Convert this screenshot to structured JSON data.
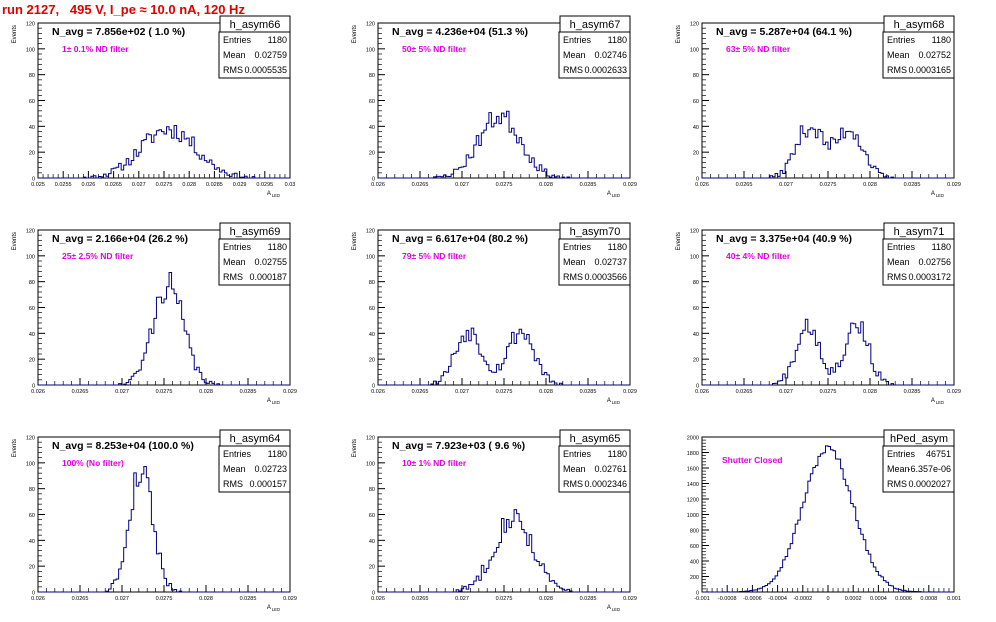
{
  "title": "run 2127,   495 V, I_pe ≈ 10.0 nA, 120 Hz",
  "colors": {
    "title": "#e00000",
    "histogram": "#000080",
    "annotation": "#e000e0",
    "axis": "#000000"
  },
  "chart_data": [
    {
      "type": "histogram",
      "name": "h_asym66",
      "nlabel": "N_avg = 7.856e+02 ( 1.0 %)",
      "annotation": "1± 0.1% ND filter",
      "entries": "1180",
      "mean": "0.02759",
      "rms": "0.0005535",
      "ylabel": "Events",
      "xlabel": "A_LED",
      "xlim": [
        0.025,
        0.03
      ],
      "ylim": [
        0,
        120
      ],
      "xticks": [
        0.025,
        0.0255,
        0.026,
        0.0265,
        0.027,
        0.0275,
        0.028,
        0.0285,
        0.029,
        0.0295,
        0.03
      ],
      "xticklabels": [
        "0.025",
        "0.0255",
        "0.026",
        "0.0265",
        "0.027",
        "0.0275",
        "0.028",
        "0.0285",
        "0.029",
        "0.0295",
        "0.03"
      ],
      "yticks": [
        0,
        20,
        40,
        60,
        80,
        100,
        120
      ],
      "shape": {
        "peaks": [
          {
            "mu": 0.02759,
            "sigma": 0.00055,
            "amp": 38
          }
        ]
      },
      "noise_seed": 11
    },
    {
      "type": "histogram",
      "name": "h_asym67",
      "nlabel": "N_avg = 4.236e+04 (51.3 %)",
      "annotation": "50± 5% ND filter",
      "entries": "1180",
      "mean": "0.02746",
      "rms": "0.0002633",
      "ylabel": "Events",
      "xlabel": "A_LED",
      "xlim": [
        0.026,
        0.029
      ],
      "ylim": [
        0,
        120
      ],
      "xticks": [
        0.026,
        0.0265,
        0.027,
        0.0275,
        0.028,
        0.0285,
        0.029
      ],
      "xticklabels": [
        "0.026",
        "0.0265",
        "0.027",
        "0.0275",
        "0.028",
        "0.0285",
        "0.029"
      ],
      "yticks": [
        0,
        20,
        40,
        60,
        80,
        100,
        120
      ],
      "shape": {
        "peaks": [
          {
            "mu": 0.02745,
            "sigma": 0.00025,
            "amp": 48
          }
        ]
      },
      "noise_seed": 23
    },
    {
      "type": "histogram",
      "name": "h_asym68",
      "nlabel": "N_avg = 5.287e+04 (64.1 %)",
      "annotation": "63± 5% ND filter",
      "entries": "1180",
      "mean": "0.02752",
      "rms": "0.0003165",
      "ylabel": "Events",
      "xlabel": "A_LED",
      "xlim": [
        0.026,
        0.029
      ],
      "ylim": [
        0,
        120
      ],
      "xticks": [
        0.026,
        0.0265,
        0.027,
        0.0275,
        0.028,
        0.0285,
        0.029
      ],
      "xticklabels": [
        "0.026",
        "0.0265",
        "0.027",
        "0.0275",
        "0.028",
        "0.0285",
        "0.029"
      ],
      "yticks": [
        0,
        20,
        40,
        60,
        80,
        100,
        120
      ],
      "shape": {
        "peaks": [
          {
            "mu": 0.02728,
            "sigma": 0.00016,
            "amp": 40
          },
          {
            "mu": 0.02776,
            "sigma": 0.00016,
            "amp": 38
          }
        ]
      },
      "noise_seed": 37
    },
    {
      "type": "histogram",
      "name": "h_asym69",
      "nlabel": "N_avg = 2.166e+04 (26.2 %)",
      "annotation": "25± 2.5% ND filter",
      "entries": "1180",
      "mean": "0.02755",
      "rms": "0.000187",
      "ylabel": "Events",
      "xlabel": "A_LED",
      "xlim": [
        0.026,
        0.029
      ],
      "ylim": [
        0,
        120
      ],
      "xticks": [
        0.026,
        0.0265,
        0.027,
        0.0275,
        0.028,
        0.0285,
        0.029
      ],
      "xticklabels": [
        "0.026",
        "0.0265",
        "0.027",
        "0.0275",
        "0.028",
        "0.0285",
        "0.029"
      ],
      "yticks": [
        0,
        20,
        40,
        60,
        80,
        100,
        120
      ],
      "shape": {
        "peaks": [
          {
            "mu": 0.02755,
            "sigma": 0.00018,
            "amp": 78
          }
        ]
      },
      "noise_seed": 41
    },
    {
      "type": "histogram",
      "name": "h_asym70",
      "nlabel": "N_avg = 6.617e+04 (80.2 %)",
      "annotation": "79± 5% ND filter",
      "entries": "1180",
      "mean": "0.02737",
      "rms": "0.0003566",
      "ylabel": "Events",
      "xlabel": "A_LED",
      "xlim": [
        0.026,
        0.029
      ],
      "ylim": [
        0,
        120
      ],
      "xticks": [
        0.026,
        0.0265,
        0.027,
        0.0275,
        0.028,
        0.0285,
        0.029
      ],
      "xticklabels": [
        "0.026",
        "0.0265",
        "0.027",
        "0.0275",
        "0.028",
        "0.0285",
        "0.029"
      ],
      "yticks": [
        0,
        20,
        40,
        60,
        80,
        100,
        120
      ],
      "shape": {
        "peaks": [
          {
            "mu": 0.02708,
            "sigma": 0.00016,
            "amp": 42
          },
          {
            "mu": 0.0277,
            "sigma": 0.00016,
            "amp": 42
          }
        ]
      },
      "noise_seed": 53
    },
    {
      "type": "histogram",
      "name": "h_asym71",
      "nlabel": "N_avg = 3.375e+04 (40.9 %)",
      "annotation": "40± 4% ND filter",
      "entries": "1180",
      "mean": "0.02756",
      "rms": "0.0003172",
      "ylabel": "Events",
      "xlabel": "A_LED",
      "xlim": [
        0.026,
        0.029
      ],
      "ylim": [
        0,
        120
      ],
      "xticks": [
        0.026,
        0.0265,
        0.027,
        0.0275,
        0.028,
        0.0285,
        0.029
      ],
      "xticklabels": [
        "0.026",
        "0.0265",
        "0.027",
        "0.0275",
        "0.028",
        "0.0285",
        "0.029"
      ],
      "yticks": [
        0,
        20,
        40,
        60,
        80,
        100,
        120
      ],
      "shape": {
        "peaks": [
          {
            "mu": 0.02726,
            "sigma": 0.00014,
            "amp": 48
          },
          {
            "mu": 0.02784,
            "sigma": 0.00014,
            "amp": 48
          }
        ]
      },
      "noise_seed": 67
    },
    {
      "type": "histogram",
      "name": "h_asym64",
      "nlabel": "N_avg = 8.253e+04 (100.0 %)",
      "annotation": "100% (No filter)",
      "entries": "1180",
      "mean": "0.02723",
      "rms": "0.000157",
      "ylabel": "Events",
      "xlabel": "A_LED",
      "xlim": [
        0.026,
        0.029
      ],
      "ylim": [
        0,
        120
      ],
      "xticks": [
        0.026,
        0.0265,
        0.027,
        0.0275,
        0.028,
        0.0285,
        0.029
      ],
      "xticklabels": [
        "0.026",
        "0.0265",
        "0.027",
        "0.0275",
        "0.028",
        "0.0285",
        "0.029"
      ],
      "yticks": [
        0,
        20,
        40,
        60,
        80,
        100,
        120
      ],
      "shape": {
        "peaks": [
          {
            "mu": 0.02723,
            "sigma": 0.00014,
            "amp": 95
          }
        ]
      },
      "noise_seed": 79
    },
    {
      "type": "histogram",
      "name": "h_asym65",
      "nlabel": "N_avg = 7.923e+03 ( 9.6 %)",
      "annotation": "10± 1% ND filter",
      "entries": "1180",
      "mean": "0.02761",
      "rms": "0.0002346",
      "ylabel": "Events",
      "xlabel": "A_LED",
      "xlim": [
        0.026,
        0.029
      ],
      "ylim": [
        0,
        120
      ],
      "xticks": [
        0.026,
        0.0265,
        0.027,
        0.0275,
        0.028,
        0.0285,
        0.029
      ],
      "xticklabels": [
        "0.026",
        "0.0265",
        "0.027",
        "0.0275",
        "0.028",
        "0.0285",
        "0.029"
      ],
      "yticks": [
        0,
        20,
        40,
        60,
        80,
        100,
        120
      ],
      "shape": {
        "peaks": [
          {
            "mu": 0.02761,
            "sigma": 0.00023,
            "amp": 58
          }
        ]
      },
      "noise_seed": 83
    },
    {
      "type": "histogram",
      "name": "hPed_asym",
      "nlabel": "",
      "annotation": "Shutter Closed",
      "entries": "46751",
      "mean": "-6.357e-06",
      "rms": "0.0002027",
      "ylabel": "",
      "xlabel": "",
      "xlim": [
        -0.001,
        0.001
      ],
      "ylim": [
        0,
        2000
      ],
      "xticks": [
        -0.001,
        -0.0008,
        -0.0006,
        -0.0004,
        -0.0002,
        0,
        0.0002,
        0.0004,
        0.0006,
        0.0008,
        0.001
      ],
      "xticklabels": [
        "-0.001",
        "-0.0008",
        "-0.0006",
        "-0.0004",
        "-0.0002",
        "0",
        "0.0002",
        "0.0004",
        "0.0006",
        "0.0008",
        "0.001"
      ],
      "yticks": [
        0,
        200,
        400,
        600,
        800,
        1000,
        1200,
        1400,
        1600,
        1800,
        2000
      ],
      "shape": {
        "peaks": [
          {
            "mu": 0.0,
            "sigma": 0.0002,
            "amp": 1850
          }
        ]
      },
      "noise_seed": 97
    }
  ]
}
